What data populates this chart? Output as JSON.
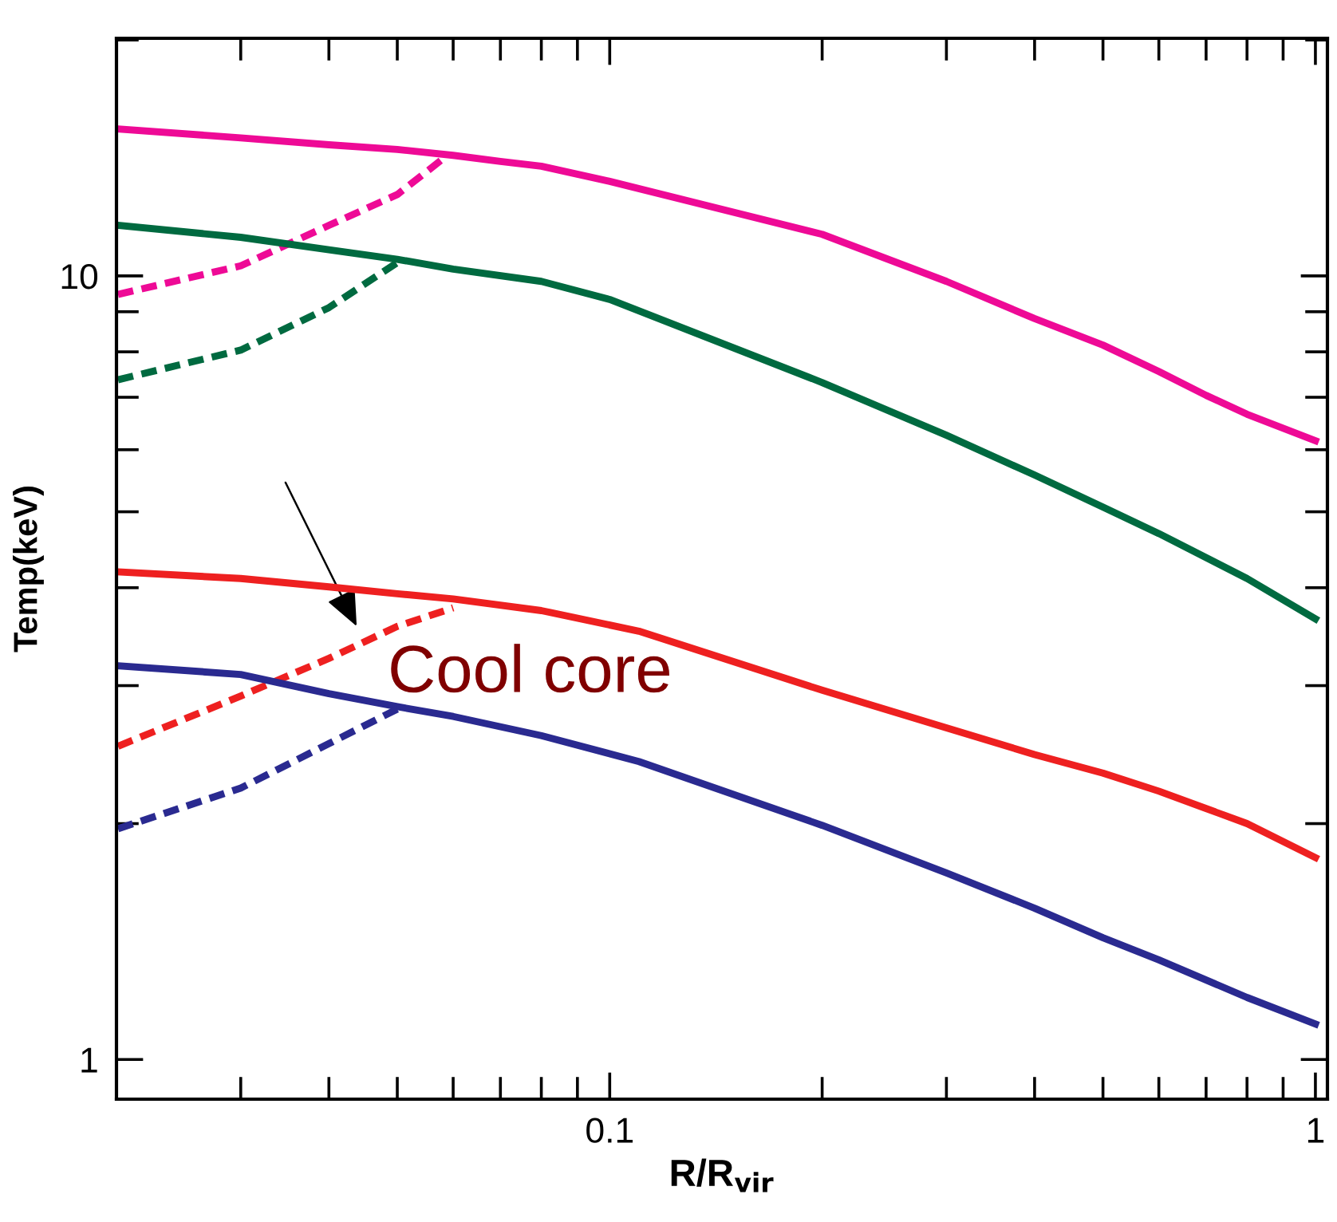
{
  "chart_data": {
    "type": "line",
    "xlabel": "R/R$_{vir}$",
    "ylabel": "Temp(keV)",
    "log": "xy",
    "grid": false,
    "marker": "none",
    "xlim": [
      0.02,
      1.04
    ],
    "ylim": [
      0.89,
      20.1
    ],
    "xticks": [
      {
        "value": 0.02,
        "label": null
      },
      {
        "value": 0.03,
        "label": null
      },
      {
        "value": 0.04,
        "label": null
      },
      {
        "value": 0.05,
        "label": null
      },
      {
        "value": 0.06,
        "label": null
      },
      {
        "value": 0.07,
        "label": null
      },
      {
        "value": 0.08,
        "label": null
      },
      {
        "value": 0.09,
        "label": null
      },
      0.1,
      {
        "value": 0.2,
        "label": null
      },
      {
        "value": 0.3,
        "label": null
      },
      {
        "value": 0.4,
        "label": null
      },
      {
        "value": 0.5,
        "label": null
      },
      {
        "value": 0.6,
        "label": null
      },
      {
        "value": 0.7,
        "label": null
      },
      {
        "value": 0.8,
        "label": null
      },
      {
        "value": 0.9,
        "label": null
      },
      1
    ],
    "yticks": [
      1,
      {
        "value": 2,
        "label": null
      },
      {
        "value": 3,
        "label": null
      },
      {
        "value": 4,
        "label": null
      },
      {
        "value": 5,
        "label": null
      },
      {
        "value": 6,
        "label": null
      },
      {
        "value": 7,
        "label": null
      },
      {
        "value": 8,
        "label": null
      },
      {
        "value": 9,
        "label": null
      },
      10,
      {
        "value": 20,
        "label": null
      }
    ],
    "annotations": [
      "Cool core"
    ],
    "series": [
      {
        "color": "#ee0a96",
        "line_style": "solid",
        "x": [
          0.0201,
          0.03,
          0.04,
          0.05,
          0.06,
          0.07,
          0.08,
          0.1,
          0.2,
          0.3,
          0.4,
          0.5,
          0.6,
          0.7,
          0.8,
          1.0
        ],
        "values": [
          15.4,
          15.0,
          14.7,
          14.5,
          14.25,
          14.0,
          13.8,
          13.2,
          11.3,
          9.84,
          8.82,
          8.16,
          7.55,
          7.04,
          6.66,
          6.16
        ]
      },
      {
        "color": "#ee0a96",
        "line_style": "dashed",
        "x": [
          0.0201,
          0.03,
          0.04,
          0.05,
          0.058
        ],
        "values": [
          9.47,
          10.3,
          11.6,
          12.7,
          14.1
        ]
      },
      {
        "color": "#006a40",
        "line_style": "solid",
        "x": [
          0.0201,
          0.03,
          0.04,
          0.05,
          0.06,
          0.08,
          0.1,
          0.2,
          0.3,
          0.4,
          0.5,
          0.6,
          0.8,
          1.0
        ],
        "values": [
          11.6,
          11.2,
          10.8,
          10.5,
          10.2,
          9.84,
          9.33,
          7.31,
          6.26,
          5.57,
          5.07,
          4.69,
          4.11,
          3.65
        ]
      },
      {
        "color": "#006a40",
        "line_style": "dashed",
        "x": [
          0.0201,
          0.03,
          0.04,
          0.05
        ],
        "values": [
          7.37,
          8.04,
          9.11,
          10.4
        ]
      },
      {
        "color": "#ee2020",
        "line_style": "solid",
        "x": [
          0.0201,
          0.03,
          0.04,
          0.05,
          0.06,
          0.08,
          0.11,
          0.2,
          0.3,
          0.4,
          0.5,
          0.6,
          0.8,
          1.0
        ],
        "values": [
          4.19,
          4.11,
          4.01,
          3.93,
          3.87,
          3.74,
          3.52,
          2.96,
          2.65,
          2.45,
          2.32,
          2.2,
          2.0,
          1.81
        ]
      },
      {
        "color": "#ee2020",
        "line_style": "dashed",
        "x": [
          0.0201,
          0.03,
          0.04,
          0.05,
          0.06
        ],
        "values": [
          2.51,
          2.91,
          3.25,
          3.57,
          3.77
        ]
      },
      {
        "color": "#2a2a90",
        "line_style": "solid",
        "x": [
          0.0201,
          0.03,
          0.04,
          0.05,
          0.06,
          0.08,
          0.11,
          0.2,
          0.3,
          0.4,
          0.5,
          0.6,
          0.8,
          1.0
        ],
        "values": [
          3.18,
          3.1,
          2.93,
          2.82,
          2.74,
          2.59,
          2.4,
          1.99,
          1.73,
          1.56,
          1.43,
          1.34,
          1.2,
          1.11
        ]
      },
      {
        "color": "#2a2a90",
        "line_style": "dashed",
        "x": [
          0.0201,
          0.03,
          0.04,
          0.05
        ],
        "values": [
          1.97,
          2.22,
          2.53,
          2.8
        ]
      }
    ]
  }
}
